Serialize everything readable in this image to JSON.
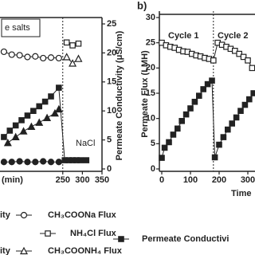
{
  "chart_data": [
    {
      "type": "line",
      "annotations": [
        "e salts",
        "NaCl"
      ],
      "xlabel": "(min)",
      "ylabel": "Permeate Conductivity (μS/cm)",
      "xlim": [
        90,
        350
      ],
      "xticks": [
        250,
        300,
        350
      ],
      "ylim": [
        0,
        25
      ],
      "yticks": [
        0,
        5,
        10,
        15,
        20,
        25
      ],
      "vline": 250,
      "color": "#222",
      "series": [
        {
          "name": "ity",
          "marker": "square",
          "filled": true,
          "x": [
            100,
            115,
            130,
            145,
            160,
            175,
            190,
            205,
            220,
            240,
            255,
            265,
            275,
            285,
            295,
            310
          ],
          "values": [
            5.5,
            6.6,
            7.5,
            8.4,
            9.2,
            10,
            10.8,
            11.6,
            12.5,
            14,
            1.5,
            1.5,
            1.5,
            1.5,
            1.5,
            1.5
          ]
        },
        {
          "marker": "circle",
          "filled": true,
          "x": [
            100,
            120,
            140,
            160,
            180,
            200,
            220,
            240
          ],
          "values": [
            1.2,
            1.2,
            1.3,
            1.2,
            1.2,
            1.3,
            1.2,
            1.2
          ]
        },
        {
          "name": "ity",
          "marker": "triangle",
          "filled": true,
          "x": [
            110,
            130,
            150,
            170,
            190,
            210,
            230,
            240
          ],
          "values": [
            4.5,
            5.5,
            6.5,
            7.3,
            8,
            8.8,
            9.6,
            10.3
          ]
        },
        {
          "name": "CH₃COONa Flux",
          "marker": "circle",
          "filled": false,
          "x": [
            100,
            120,
            140,
            160,
            180,
            200,
            220,
            240
          ],
          "values": [
            20.2,
            19.7,
            19.6,
            19.3,
            19.4,
            19.1,
            19.2,
            19.1
          ]
        },
        {
          "name": "NH₄Cl Flux",
          "marker": "square",
          "filled": false,
          "x": [
            260,
            275,
            290
          ],
          "values": [
            21.8,
            21.3,
            21.6
          ]
        },
        {
          "name": "CH₃COONH₄ Flux",
          "marker": "triangle",
          "filled": false,
          "x": [
            260,
            275,
            290
          ],
          "values": [
            19.3,
            18.2,
            19
          ]
        }
      ]
    },
    {
      "type": "line",
      "title": "b)",
      "annotations": [
        "Cycle 1",
        "Cycle 2"
      ],
      "xlabel": "Time",
      "ylabel": "Permeate Flux (LMH)",
      "xlim": [
        0,
        325
      ],
      "xticks": [
        0,
        100,
        200,
        300
      ],
      "ylim": [
        0,
        30
      ],
      "yticks": [
        0,
        5,
        10,
        15,
        20,
        25,
        30
      ],
      "vline": 180,
      "color": "#222",
      "series": [
        {
          "marker": "square",
          "filled": false,
          "x": [
            0,
            15,
            30,
            45,
            60,
            75,
            90,
            105,
            120,
            135,
            150,
            165,
            180,
            195,
            210,
            225,
            240,
            255,
            270,
            285,
            300,
            315
          ],
          "values": [
            25,
            24.5,
            24.2,
            24,
            23.6,
            23.3,
            23.2,
            22.8,
            22.5,
            22.3,
            22,
            21.8,
            21.5,
            25,
            24.6,
            24.2,
            23.8,
            23.4,
            22.8,
            22.2,
            21.5,
            20
          ]
        },
        {
          "name": "Permeate Conductivi",
          "marker": "square",
          "filled": true,
          "x": [
            0,
            10,
            25,
            40,
            55,
            70,
            85,
            100,
            115,
            130,
            145,
            160,
            175,
            185,
            200,
            215,
            230,
            245,
            260,
            275,
            290,
            305,
            320
          ],
          "values": [
            2.2,
            4.2,
            5.3,
            6.8,
            8,
            9.5,
            10.8,
            12,
            13.3,
            14.5,
            15.8,
            16.8,
            17.5,
            2.3,
            4.8,
            6.3,
            7.8,
            9,
            10.2,
            11.5,
            12.7,
            13.8,
            15
          ]
        }
      ]
    }
  ]
}
